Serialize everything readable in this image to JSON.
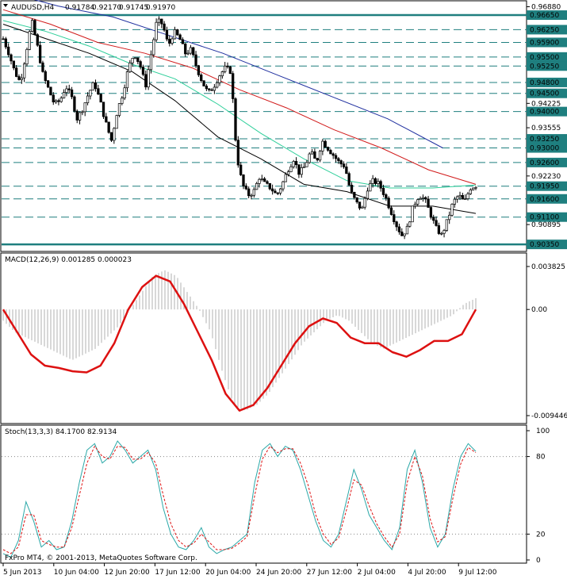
{
  "header": {
    "symbol": "AUDUSD,H4",
    "open": "0.91784",
    "high": "0.92170",
    "low": "0.91745",
    "close": "0.91970"
  },
  "copyright": "FxPro MT4, © 2001-2013, MetaQuotes Software Corp.",
  "colors": {
    "background": "#ffffff",
    "level_line": "#1f7f7f",
    "ma_black": "#000000",
    "ma_green": "#2ecf9a",
    "ma_red": "#d11a1a",
    "ma_blue": "#1f2f9f",
    "macd_histogram": "#b0b0b0",
    "macd_signal": "#dd1111",
    "stoch_main": "#2aa8a8",
    "stoch_signal": "#dd1111"
  },
  "chart_data": [
    {
      "type": "candlestick",
      "panel": "price",
      "title": "AUDUSD,H4",
      "ylim": [
        0.902,
        0.97
      ],
      "price_ticks": [
        "0.96880",
        "0.96250",
        "0.95900",
        "0.95500",
        "0.95250",
        "0.94800",
        "0.94500",
        "0.94225",
        "0.94000",
        "0.93555",
        "0.93250",
        "0.93000",
        "0.92600",
        "0.92230",
        "0.91950",
        "0.91600",
        "0.91100",
        "0.90895",
        "0.90350"
      ],
      "levels": [
        {
          "price": 0.9665,
          "label": "0.96650",
          "thick": true
        },
        {
          "price": 0.9625,
          "label": "0.96250",
          "thick": false
        },
        {
          "price": 0.959,
          "label": "0.95900",
          "thick": false
        },
        {
          "price": 0.955,
          "label": "0.95500",
          "thick": false
        },
        {
          "price": 0.9525,
          "label": "0.95250",
          "thick": false
        },
        {
          "price": 0.948,
          "label": "0.94800",
          "thick": false
        },
        {
          "price": 0.945,
          "label": "0.94500",
          "thick": false
        },
        {
          "price": 0.94,
          "label": "0.94000",
          "thick": false
        },
        {
          "price": 0.9325,
          "label": "0.93250",
          "thick": false
        },
        {
          "price": 0.93,
          "label": "0.93000",
          "thick": false
        },
        {
          "price": 0.926,
          "label": "0.92600",
          "thick": false
        },
        {
          "price": 0.9195,
          "label": "0.91950",
          "thick": false
        },
        {
          "price": 0.916,
          "label": "0.91600",
          "thick": false
        },
        {
          "price": 0.911,
          "label": "0.91100",
          "thick": false
        },
        {
          "price": 0.9035,
          "label": "0.90350",
          "thick": true
        }
      ],
      "close_path": [
        0.96,
        0.956,
        0.951,
        0.948,
        0.956,
        0.965,
        0.958,
        0.95,
        0.946,
        0.942,
        0.943,
        0.947,
        0.944,
        0.938,
        0.941,
        0.945,
        0.948,
        0.943,
        0.937,
        0.932,
        0.94,
        0.945,
        0.952,
        0.956,
        0.953,
        0.947,
        0.956,
        0.965,
        0.964,
        0.958,
        0.962,
        0.96,
        0.956,
        0.957,
        0.952,
        0.948,
        0.945,
        0.947,
        0.95,
        0.952,
        0.951,
        0.928,
        0.92,
        0.917,
        0.918,
        0.922,
        0.92,
        0.919,
        0.917,
        0.92,
        0.924,
        0.927,
        0.923,
        0.925,
        0.929,
        0.926,
        0.932,
        0.93,
        0.928,
        0.926,
        0.925,
        0.918,
        0.915,
        0.913,
        0.919,
        0.921,
        0.92,
        0.917,
        0.913,
        0.909,
        0.906,
        0.908,
        0.914,
        0.917,
        0.916,
        0.912,
        0.908,
        0.906,
        0.91,
        0.915,
        0.917,
        0.915,
        0.919,
        0.9197
      ],
      "moving_averages": [
        {
          "color": "#000000",
          "points": [
            0.964,
            0.96,
            0.956,
            0.951,
            0.943,
            0.933,
            0.927,
            0.92,
            0.918,
            0.914,
            0.914,
            0.912
          ]
        },
        {
          "color": "#2ecf9a",
          "points": [
            0.965,
            0.962,
            0.958,
            0.953,
            0.949,
            0.942,
            0.934,
            0.927,
            0.921,
            0.919,
            0.919,
            0.9198
          ]
        },
        {
          "color": "#d11a1a",
          "points": [
            0.968,
            0.964,
            0.959,
            0.956,
            0.952,
            0.946,
            0.941,
            0.935,
            0.93,
            0.924,
            0.92
          ]
        },
        {
          "color": "#1f2f9f",
          "points": [
            0.973,
            0.969,
            0.966,
            0.961,
            0.956,
            0.95,
            0.944,
            0.938,
            0.93
          ]
        }
      ]
    },
    {
      "type": "histogram",
      "panel": "macd",
      "title": "MACD(12,26,9) 0.001285 0.000023",
      "ylim": [
        -0.009446,
        0.003825
      ],
      "ticks": [
        "0.003825",
        "0.00",
        "-0.009446"
      ],
      "histogram_values": [
        -0.001,
        -0.002,
        -0.0025,
        -0.003,
        -0.0035,
        -0.004,
        -0.0045,
        -0.004,
        -0.0035,
        -0.0025,
        -0.0015,
        0.0,
        0.0015,
        0.003,
        0.0035,
        0.003,
        0.0015,
        0.0,
        -0.002,
        -0.0055,
        -0.0085,
        -0.009,
        -0.0085,
        -0.0075,
        -0.006,
        -0.0045,
        -0.003,
        -0.002,
        -0.001,
        -0.0005,
        -0.001,
        -0.002,
        -0.003,
        -0.0035,
        -0.003,
        -0.0025,
        -0.002,
        -0.0015,
        -0.001,
        -0.0005,
        0.0005,
        0.001
      ],
      "signal_values": [
        0.0,
        -0.002,
        -0.004,
        -0.005,
        -0.0052,
        -0.0055,
        -0.0056,
        -0.005,
        -0.003,
        0.0,
        0.002,
        0.003,
        0.0025,
        0.0005,
        -0.002,
        -0.0045,
        -0.0075,
        -0.009,
        -0.0085,
        -0.007,
        -0.005,
        -0.003,
        -0.0015,
        -0.0008,
        -0.0012,
        -0.0025,
        -0.003,
        -0.003,
        -0.0038,
        -0.0042,
        -0.0036,
        -0.0028,
        -0.0028,
        -0.0022,
        0.0
      ]
    },
    {
      "type": "line",
      "panel": "stochastic",
      "title": "Stoch(13,3,3) 84.1700 82.9134",
      "ylim": [
        0,
        100
      ],
      "ticks": [
        "100",
        "80",
        "20",
        "0"
      ],
      "series": [
        {
          "values": [
            5,
            2,
            15,
            45,
            30,
            10,
            15,
            8,
            10,
            30,
            60,
            85,
            90,
            75,
            80,
            92,
            85,
            75,
            80,
            85,
            70,
            40,
            20,
            10,
            8,
            15,
            25,
            10,
            5,
            8,
            10,
            15,
            20,
            60,
            85,
            90,
            80,
            88,
            85,
            70,
            50,
            30,
            15,
            10,
            20,
            45,
            70,
            55,
            35,
            25,
            15,
            8,
            25,
            70,
            85,
            60,
            25,
            10,
            20,
            55,
            80,
            90,
            84
          ]
        },
        {
          "values": [
            8,
            5,
            10,
            35,
            35,
            15,
            12,
            10,
            10,
            25,
            50,
            75,
            88,
            80,
            78,
            88,
            87,
            78,
            78,
            83,
            75,
            50,
            28,
            15,
            10,
            13,
            20,
            14,
            8,
            8,
            9,
            13,
            18,
            50,
            78,
            88,
            83,
            86,
            86,
            75,
            58,
            35,
            20,
            12,
            17,
            38,
            62,
            58,
            42,
            28,
            18,
            10,
            20,
            60,
            80,
            65,
            32,
            14,
            18,
            48,
            74,
            87,
            83
          ]
        }
      ]
    }
  ],
  "time_axis": {
    "labels": [
      "5 Jun 2013",
      "10 Jun 04:00",
      "12 Jun 20:00",
      "17 Jun 12:00",
      "20 Jun 04:00",
      "24 Jun 20:00",
      "27 Jun 12:00",
      "2 Jul 04:00",
      "4 Jul 20:00",
      "9 Jul 12:00"
    ]
  }
}
